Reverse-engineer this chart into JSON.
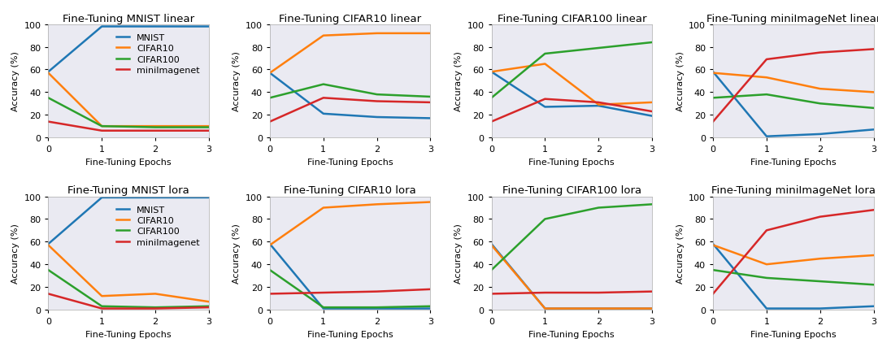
{
  "titles": [
    "Fine-Tuning MNIST linear",
    "Fine-Tuning CIFAR10 linear",
    "Fine-Tuning CIFAR100 linear",
    "Fine-Tuning miniImageNet linear",
    "Fine-Tuning MNIST lora",
    "Fine-Tuning CIFAR10 lora",
    "Fine-Tuning CIFAR100 lora",
    "Fine-Tuning miniImageNet lora"
  ],
  "series_labels": [
    "MNIST",
    "CIFAR10",
    "CIFAR100",
    "miniImagenet"
  ],
  "series_colors": [
    "#1f77b4",
    "#ff7f0e",
    "#2ca02c",
    "#d62728"
  ],
  "x": [
    0,
    1,
    2,
    3
  ],
  "data": {
    "mnist_linear": {
      "MNIST": [
        58,
        98,
        98,
        98
      ],
      "CIFAR10": [
        57,
        10,
        10,
        10
      ],
      "CIFAR100": [
        35,
        10,
        9,
        9
      ],
      "miniImagenet": [
        14,
        6,
        6,
        6
      ]
    },
    "cifar10_linear": {
      "MNIST": [
        57,
        21,
        18,
        17
      ],
      "CIFAR10": [
        57,
        90,
        92,
        92
      ],
      "CIFAR100": [
        35,
        47,
        38,
        36
      ],
      "miniImagenet": [
        14,
        35,
        32,
        31
      ]
    },
    "cifar100_linear": {
      "MNIST": [
        58,
        27,
        28,
        19
      ],
      "CIFAR10": [
        58,
        65,
        29,
        31
      ],
      "CIFAR100": [
        35,
        74,
        79,
        84
      ],
      "miniImagenet": [
        14,
        34,
        31,
        23
      ]
    },
    "miniimagenet_linear": {
      "MNIST": [
        58,
        1,
        3,
        7
      ],
      "CIFAR10": [
        57,
        53,
        43,
        40
      ],
      "CIFAR100": [
        35,
        38,
        30,
        26
      ],
      "miniImagenet": [
        14,
        69,
        75,
        78
      ]
    },
    "mnist_lora": {
      "MNIST": [
        58,
        99,
        99,
        99
      ],
      "CIFAR10": [
        57,
        12,
        14,
        7
      ],
      "CIFAR100": [
        35,
        3,
        2,
        3
      ],
      "miniImagenet": [
        14,
        1,
        1,
        2
      ]
    },
    "cifar10_lora": {
      "MNIST": [
        58,
        1,
        1,
        1
      ],
      "CIFAR10": [
        57,
        90,
        93,
        95
      ],
      "CIFAR100": [
        35,
        2,
        2,
        3
      ],
      "miniImagenet": [
        14,
        15,
        16,
        18
      ]
    },
    "cifar100_lora": {
      "MNIST": [
        58,
        1,
        1,
        1
      ],
      "CIFAR10": [
        57,
        1,
        1,
        1
      ],
      "CIFAR100": [
        35,
        80,
        90,
        93
      ],
      "miniImagenet": [
        14,
        15,
        15,
        16
      ]
    },
    "miniimagenet_lora": {
      "MNIST": [
        58,
        1,
        1,
        3
      ],
      "CIFAR10": [
        57,
        40,
        45,
        48
      ],
      "CIFAR100": [
        35,
        28,
        25,
        22
      ],
      "miniImagenet": [
        14,
        70,
        82,
        88
      ]
    }
  },
  "xlabel": "Fine-Tuning Epochs",
  "ylabel": "Accuracy (%)",
  "ylim": [
    0,
    100
  ],
  "background_color": "#eaeaf2",
  "fig_background": "#ffffff",
  "show_legend": [
    true,
    false,
    false,
    false,
    true,
    false,
    false,
    false
  ],
  "linewidth": 1.8,
  "title_fontsize": 9.5,
  "label_fontsize": 8,
  "tick_fontsize": 8,
  "legend_fontsize": 8
}
